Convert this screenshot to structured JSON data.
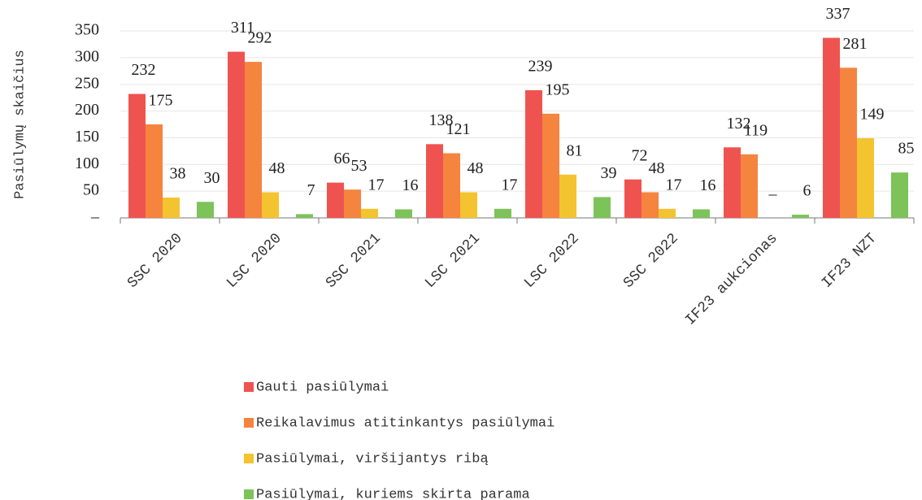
{
  "chart_data": {
    "type": "bar",
    "y_label": "Pasiūlymų skaičius",
    "categories": [
      "SSC 2020",
      "LSC 2020",
      "SSC 2021",
      "LSC 2021",
      "LSC 2022",
      "SSC 2022",
      "IF23 aukcionas",
      "IF23 NZT"
    ],
    "series": [
      {
        "name": "Gauti pasiūlymai",
        "color": "#ef5350",
        "values": [
          232,
          311,
          66,
          138,
          239,
          72,
          132,
          337
        ]
      },
      {
        "name": "Reikalavimus atitinkantys pasiūlymai",
        "color": "#f5843f",
        "values": [
          175,
          292,
          53,
          121,
          195,
          48,
          119,
          281
        ]
      },
      {
        "name": "Pasiūlymai, viršijantys ribą",
        "color": "#f4c330",
        "values": [
          38,
          48,
          17,
          48,
          81,
          17,
          0,
          149
        ],
        "value_labels": [
          "38",
          "48",
          "17",
          "48",
          "81",
          "17",
          "–",
          "149"
        ]
      },
      {
        "name": "Pasiūlymai, kuriems skirta parama",
        "color": "#7cc35a",
        "values": [
          30,
          7,
          16,
          17,
          39,
          16,
          6,
          85
        ]
      }
    ],
    "ylim": [
      0,
      350
    ],
    "yticks": [
      {
        "value": 0,
        "label": "–"
      },
      50,
      100,
      150,
      200,
      250,
      300,
      350
    ],
    "grid": true,
    "legend": "bottom"
  }
}
